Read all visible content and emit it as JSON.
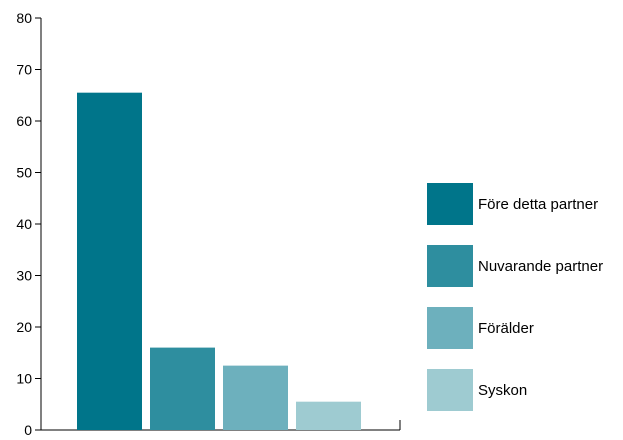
{
  "chart_data": {
    "type": "bar",
    "title": "",
    "xlabel": "",
    "ylabel": "",
    "ylim": [
      0,
      80
    ],
    "yticks": [
      0,
      10,
      20,
      30,
      40,
      50,
      60,
      70,
      80
    ],
    "grid": false,
    "legend_position": "right",
    "categories": [
      "Före detta partner",
      "Nuvarande partner",
      "Förälder",
      "Syskon"
    ],
    "values": [
      65.5,
      16,
      12.5,
      5.5
    ],
    "colors": [
      "#00758a",
      "#2e8e9f",
      "#6db0bd",
      "#9ecbd1"
    ]
  }
}
